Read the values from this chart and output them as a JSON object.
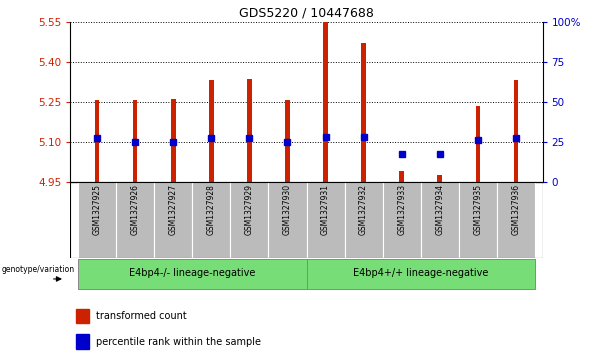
{
  "title": "GDS5220 / 10447688",
  "samples": [
    "GSM1327925",
    "GSM1327926",
    "GSM1327927",
    "GSM1327928",
    "GSM1327929",
    "GSM1327930",
    "GSM1327931",
    "GSM1327932",
    "GSM1327933",
    "GSM1327934",
    "GSM1327935",
    "GSM1327936"
  ],
  "bar_values": [
    5.255,
    5.255,
    5.26,
    5.33,
    5.335,
    5.255,
    5.55,
    5.47,
    4.99,
    4.975,
    5.235,
    5.33
  ],
  "percentile_values": [
    27,
    25,
    25,
    27,
    27,
    25,
    28,
    28,
    17,
    17,
    26,
    27
  ],
  "bar_bottom": 4.95,
  "ylim_left": [
    4.95,
    5.55
  ],
  "ylim_right": [
    0,
    100
  ],
  "yticks_left": [
    4.95,
    5.1,
    5.25,
    5.4,
    5.55
  ],
  "yticks_right": [
    0,
    25,
    50,
    75,
    100
  ],
  "yticks_right_labels": [
    "0",
    "25",
    "50",
    "75",
    "100%"
  ],
  "bar_color": "#cc2200",
  "dot_color": "#0000cc",
  "group1_label": "E4bp4-/- lineage-negative",
  "group2_label": "E4bp4+/+ lineage-negative",
  "group_bg_color": "#77dd77",
  "sample_bg_color": "#bbbbbb",
  "legend_bar_label": "transformed count",
  "legend_dot_label": "percentile rank within the sample",
  "genotype_label": "genotype/variation",
  "bar_width": 0.12
}
